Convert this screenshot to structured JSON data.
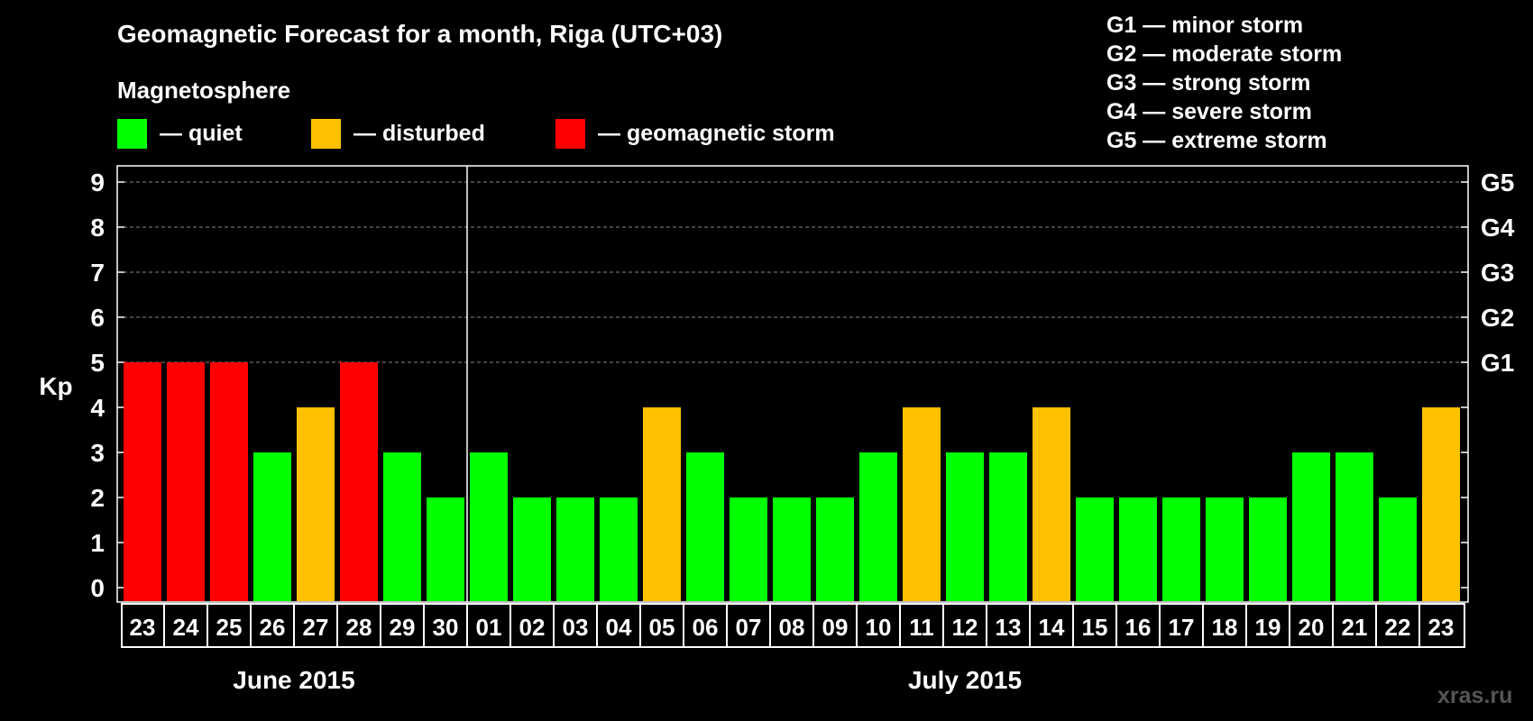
{
  "header": {
    "title": "Geomagnetic Forecast for a month, Riga (UTC+03)",
    "subtitle": "Magnetosphere"
  },
  "legend": [
    {
      "label": "— quiet",
      "color": "#00ff00"
    },
    {
      "label": "— disturbed",
      "color": "#ffc000"
    },
    {
      "label": "— geomagnetic storm",
      "color": "#ff0000"
    }
  ],
  "storm_scale": [
    "G1 — minor storm",
    "G2 — moderate storm",
    "G3 — strong storm",
    "G4 — severe storm",
    "G5 — extreme storm"
  ],
  "watermark": "xras.ru",
  "chart_data": {
    "type": "bar",
    "ylabel": "Kp",
    "ylim": [
      0,
      9
    ],
    "yticks": [
      0,
      1,
      2,
      3,
      4,
      5,
      6,
      7,
      8,
      9
    ],
    "grid": true,
    "right_axis_labels": [
      {
        "kp": 5,
        "label": "G1"
      },
      {
        "kp": 6,
        "label": "G2"
      },
      {
        "kp": 7,
        "label": "G3"
      },
      {
        "kp": 8,
        "label": "G4"
      },
      {
        "kp": 9,
        "label": "G5"
      }
    ],
    "categories": [
      "23",
      "24",
      "25",
      "26",
      "27",
      "28",
      "29",
      "30",
      "01",
      "02",
      "03",
      "04",
      "05",
      "06",
      "07",
      "08",
      "09",
      "10",
      "11",
      "12",
      "13",
      "14",
      "15",
      "16",
      "17",
      "18",
      "19",
      "20",
      "21",
      "22",
      "23"
    ],
    "values": [
      5,
      5,
      5,
      3,
      4,
      5,
      3,
      2,
      3,
      2,
      2,
      2,
      4,
      3,
      2,
      2,
      2,
      3,
      4,
      3,
      3,
      4,
      2,
      2,
      2,
      2,
      2,
      3,
      3,
      2,
      4
    ],
    "month_groups": [
      {
        "label": "June 2015",
        "start": 0,
        "count": 8
      },
      {
        "label": "July 2015",
        "start": 8,
        "count": 23
      }
    ],
    "color_rule": {
      "quiet": "#00ff00",
      "disturbed": "#ffc000",
      "storm": "#ff0000"
    }
  }
}
